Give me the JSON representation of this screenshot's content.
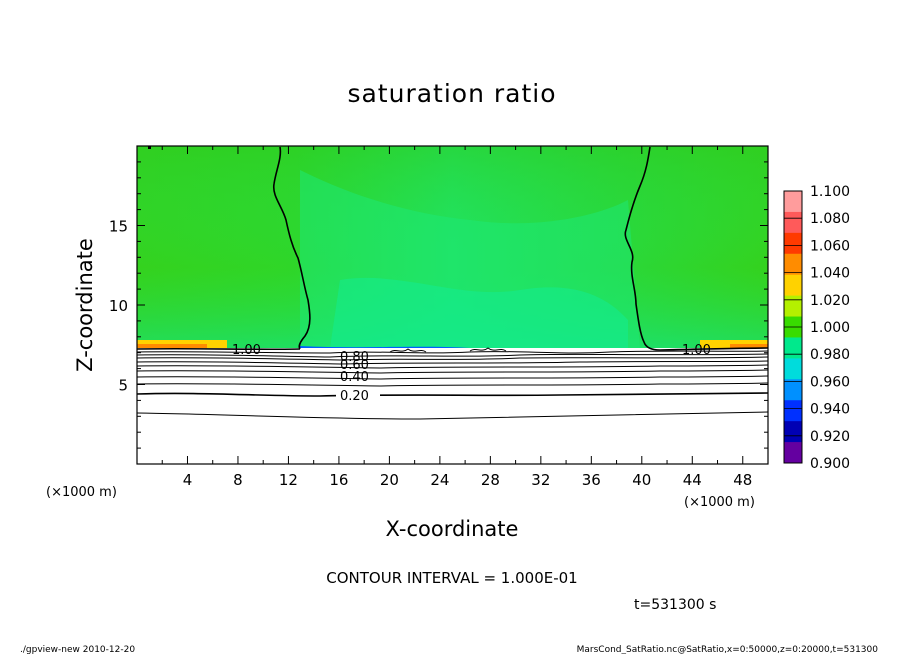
{
  "chart_data": {
    "type": "heatmap",
    "title": "saturation ratio",
    "xlabel": "X-coordinate",
    "ylabel": "Z-coordinate",
    "x_unit": "(×1000 m)",
    "y_unit": "(×1000 m)",
    "xlim": [
      0,
      50
    ],
    "ylim": [
      0,
      20
    ],
    "x_ticks": [
      4,
      8,
      12,
      16,
      20,
      24,
      28,
      32,
      36,
      40,
      44,
      48
    ],
    "y_ticks": [
      5,
      10,
      15
    ],
    "contour_interval_text": "CONTOUR INTERVAL = 1.000E-01",
    "time_text": "t=531300 s",
    "contour_labels": [
      {
        "text": "1.00",
        "x": 9.0,
        "z": 7.2
      },
      {
        "text": "1.00",
        "x": 44.2,
        "z": 7.2
      },
      {
        "text": "0.80",
        "x": 17.5,
        "z": 6.8
      },
      {
        "text": "0.60",
        "x": 17.5,
        "z": 6.3
      },
      {
        "text": "0.40",
        "x": 17.5,
        "z": 5.3
      },
      {
        "text": "0.20",
        "x": 17.5,
        "z": 4.3
      }
    ],
    "colorbar": {
      "levels": [
        "1.100",
        "1.080",
        "1.060",
        "1.040",
        "1.020",
        "1.000",
        "0.980",
        "0.960",
        "0.940",
        "0.920",
        "0.900"
      ],
      "colors": [
        "#ff9c9c",
        "#ff5a5a",
        "#ff3a00",
        "#ff8c00",
        "#ffd200",
        "#b4f000",
        "#38dc00",
        "#00e98c",
        "#00dcdc",
        "#0090ff",
        "#0030ff",
        "#0000b4",
        "#6400a0"
      ]
    },
    "field_colors": {
      "upper_green": "#2ed228",
      "interior_green": "#22e25a",
      "edge_yellow": "#b4f000",
      "edge_orange": "#ff8c00",
      "band_blue": "#0060ff",
      "below_cloud": "#ffffff"
    }
  },
  "footer": {
    "left": "./gpview-new   2010-12-20",
    "right": "MarsCond_SatRatio.nc@SatRatio,x=0:50000,z=0:20000,t=531300"
  }
}
